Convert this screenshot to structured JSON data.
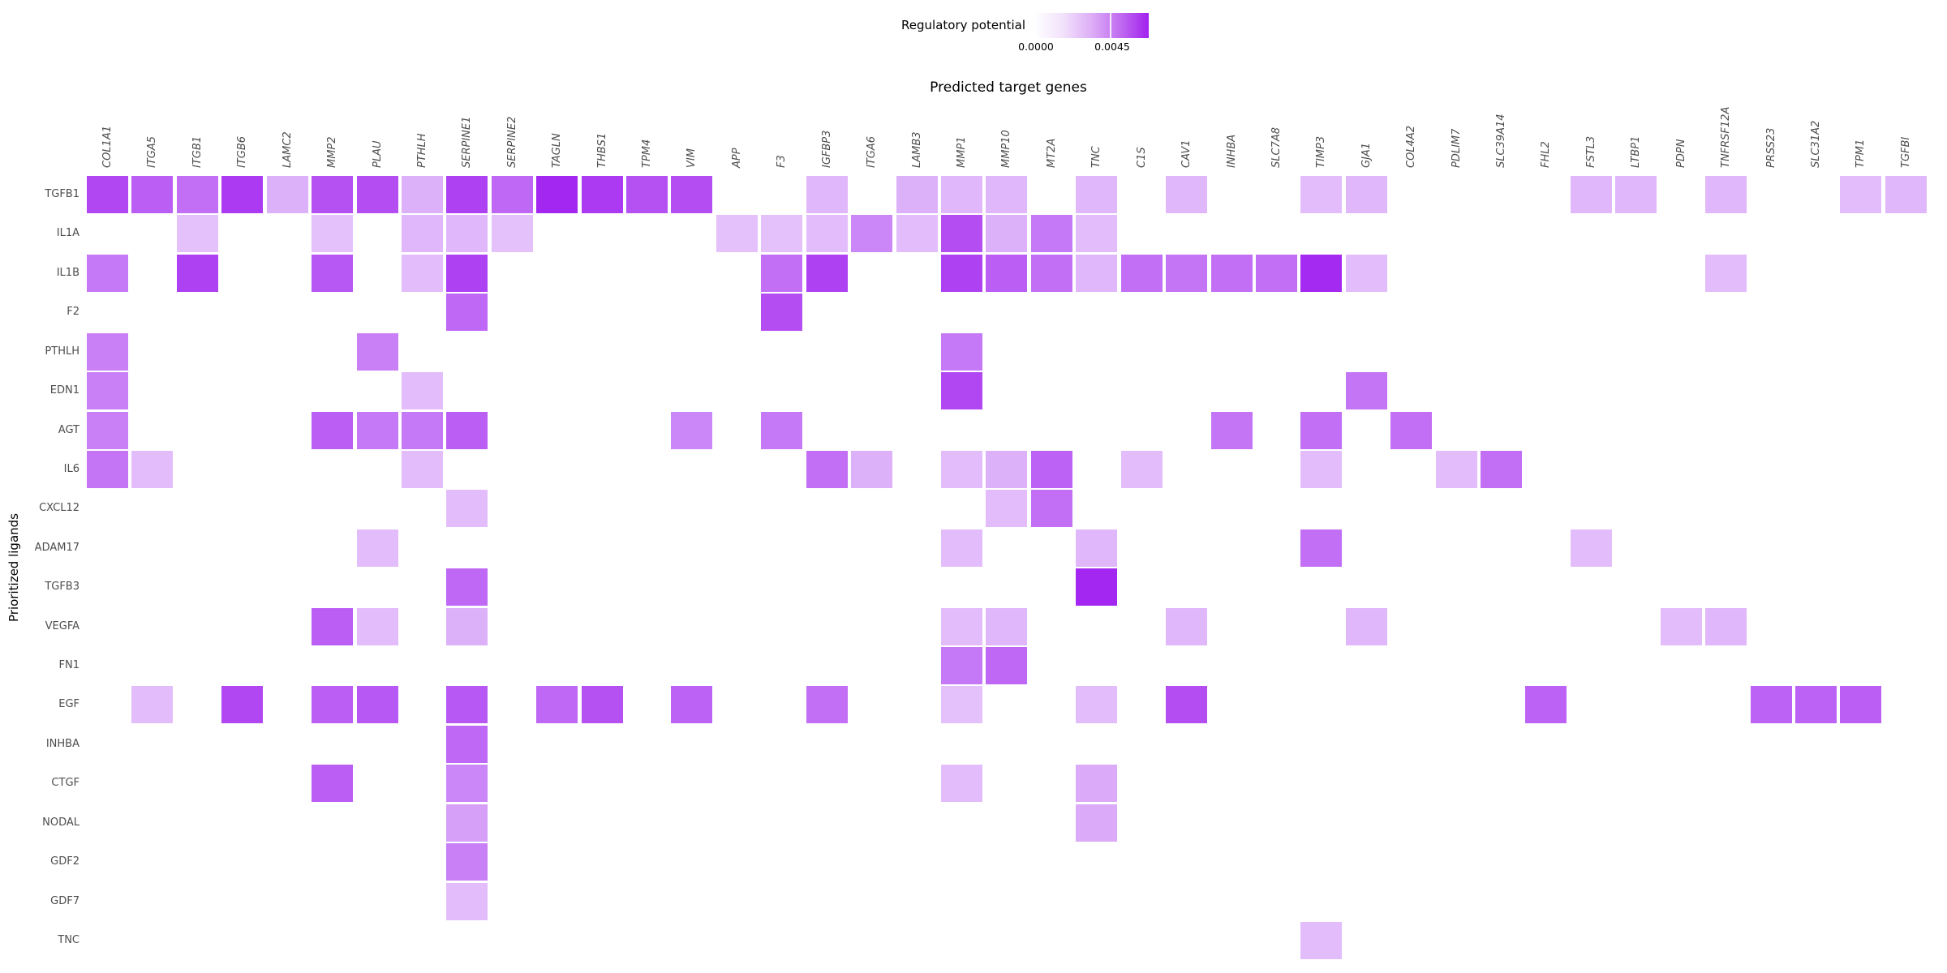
{
  "title": "Predicted target genes",
  "y_axis_label": "Prioritized ligands",
  "legend": {
    "title": "Regulatory potential",
    "tick_low": "0.0000",
    "tick_high": "0.0045",
    "low_color": "#FFFFFF",
    "high_color": "#A020F0"
  },
  "chart_data": {
    "type": "heatmap",
    "x_categories": [
      "COL1A1",
      "ITGA5",
      "ITGB1",
      "ITGB6",
      "LAMC2",
      "MMP2",
      "PLAU",
      "PTHLH",
      "SERPINE1",
      "SERPINE2",
      "TAGLN",
      "THBS1",
      "TPM4",
      "VIM",
      "APP",
      "F3",
      "IGFBP3",
      "ITGA6",
      "LAMB3",
      "MMP1",
      "MMP10",
      "MT2A",
      "TNC",
      "C1S",
      "CAV1",
      "INHBA",
      "SLC7A8",
      "TIMP3",
      "GJA1",
      "COL4A2",
      "PDLIM7",
      "SLC39A14",
      "FHL2",
      "FSTL3",
      "LTBP1",
      "PDPN",
      "TNFRSF12A",
      "PRSS23",
      "SLC31A2",
      "TPM1",
      "TGFBI"
    ],
    "y_categories": [
      "TGFB1",
      "IL1A",
      "IL1B",
      "F2",
      "PTHLH",
      "EDN1",
      "AGT",
      "IL6",
      "CXCL12",
      "ADAM17",
      "TGFB3",
      "VEGFA",
      "FN1",
      "EGF",
      "INHBA",
      "CTGF",
      "NODAL",
      "GDF2",
      "GDF7",
      "TNC"
    ],
    "value_label": "regulatory potential",
    "scale_max": 0.0068,
    "legend_range": [
      0.0,
      0.0045
    ],
    "grid": false,
    "legend_position": "top",
    "cells": [
      [
        "TGFB1",
        "COL1A1",
        0.0056
      ],
      [
        "TGFB1",
        "ITGA5",
        0.0049
      ],
      [
        "TGFB1",
        "ITGB1",
        0.0044
      ],
      [
        "TGFB1",
        "ITGB6",
        0.006
      ],
      [
        "TGFB1",
        "LAMC2",
        0.0024
      ],
      [
        "TGFB1",
        "MMP2",
        0.0053
      ],
      [
        "TGFB1",
        "PLAU",
        0.0054
      ],
      [
        "TGFB1",
        "PTHLH",
        0.0024
      ],
      [
        "TGFB1",
        "SERPINE1",
        0.0058
      ],
      [
        "TGFB1",
        "SERPINE2",
        0.0046
      ],
      [
        "TGFB1",
        "TAGLN",
        0.0066
      ],
      [
        "TGFB1",
        "THBS1",
        0.006
      ],
      [
        "TGFB1",
        "TPM4",
        0.0053
      ],
      [
        "TGFB1",
        "VIM",
        0.0054
      ],
      [
        "TGFB1",
        "IGFBP3",
        0.0022
      ],
      [
        "TGFB1",
        "LAMB3",
        0.0024
      ],
      [
        "TGFB1",
        "MMP1",
        0.0022
      ],
      [
        "TGFB1",
        "MMP10",
        0.0022
      ],
      [
        "TGFB1",
        "TNC",
        0.0022
      ],
      [
        "TGFB1",
        "CAV1",
        0.0022
      ],
      [
        "TGFB1",
        "TIMP3",
        0.002
      ],
      [
        "TGFB1",
        "GJA1",
        0.0022
      ],
      [
        "TGFB1",
        "FSTL3",
        0.0022
      ],
      [
        "TGFB1",
        "LTBP1",
        0.0022
      ],
      [
        "TGFB1",
        "TNFRSF12A",
        0.0022
      ],
      [
        "TGFB1",
        "TPM1",
        0.002
      ],
      [
        "TGFB1",
        "TGFBI",
        0.0022
      ],
      [
        "IL1A",
        "ITGB1",
        0.0019
      ],
      [
        "IL1A",
        "MMP2",
        0.0019
      ],
      [
        "IL1A",
        "PTHLH",
        0.0022
      ],
      [
        "IL1A",
        "SERPINE1",
        0.0022
      ],
      [
        "IL1A",
        "SERPINE2",
        0.0019
      ],
      [
        "IL1A",
        "APP",
        0.0019
      ],
      [
        "IL1A",
        "F3",
        0.0019
      ],
      [
        "IL1A",
        "IGFBP3",
        0.002
      ],
      [
        "IL1A",
        "ITGA6",
        0.0037
      ],
      [
        "IL1A",
        "LAMB3",
        0.002
      ],
      [
        "IL1A",
        "MMP1",
        0.0054
      ],
      [
        "IL1A",
        "MMP10",
        0.0024
      ],
      [
        "IL1A",
        "MT2A",
        0.0041
      ],
      [
        "IL1A",
        "TNC",
        0.002
      ],
      [
        "IL1B",
        "COL1A1",
        0.0041
      ],
      [
        "IL1B",
        "ITGB1",
        0.0058
      ],
      [
        "IL1B",
        "MMP2",
        0.0051
      ],
      [
        "IL1B",
        "PTHLH",
        0.002
      ],
      [
        "IL1B",
        "SERPINE1",
        0.0058
      ],
      [
        "IL1B",
        "F3",
        0.0044
      ],
      [
        "IL1B",
        "IGFBP3",
        0.0058
      ],
      [
        "IL1B",
        "MMP1",
        0.0058
      ],
      [
        "IL1B",
        "MMP10",
        0.0049
      ],
      [
        "IL1B",
        "MT2A",
        0.0044
      ],
      [
        "IL1B",
        "TNC",
        0.0022
      ],
      [
        "IL1B",
        "C1S",
        0.0044
      ],
      [
        "IL1B",
        "CAV1",
        0.0042
      ],
      [
        "IL1B",
        "INHBA",
        0.0044
      ],
      [
        "IL1B",
        "SLC7A8",
        0.0044
      ],
      [
        "IL1B",
        "TIMP3",
        0.0065
      ],
      [
        "IL1B",
        "GJA1",
        0.002
      ],
      [
        "IL1B",
        "TNFRSF12A",
        0.002
      ],
      [
        "F2",
        "SERPINE1",
        0.0046
      ],
      [
        "F2",
        "F3",
        0.0054
      ],
      [
        "PTHLH",
        "COL1A1",
        0.0039
      ],
      [
        "PTHLH",
        "PLAU",
        0.0039
      ],
      [
        "PTHLH",
        "MMP1",
        0.0041
      ],
      [
        "EDN1",
        "COL1A1",
        0.0039
      ],
      [
        "EDN1",
        "PTHLH",
        0.002
      ],
      [
        "EDN1",
        "MMP1",
        0.0056
      ],
      [
        "EDN1",
        "GJA1",
        0.0042
      ],
      [
        "AGT",
        "COL1A1",
        0.0039
      ],
      [
        "AGT",
        "MMP2",
        0.0049
      ],
      [
        "AGT",
        "PLAU",
        0.0041
      ],
      [
        "AGT",
        "PTHLH",
        0.0041
      ],
      [
        "AGT",
        "SERPINE1",
        0.0049
      ],
      [
        "AGT",
        "VIM",
        0.0037
      ],
      [
        "AGT",
        "F3",
        0.0041
      ],
      [
        "AGT",
        "INHBA",
        0.0042
      ],
      [
        "AGT",
        "TIMP3",
        0.0044
      ],
      [
        "AGT",
        "COL4A2",
        0.0044
      ],
      [
        "IL6",
        "COL1A1",
        0.0042
      ],
      [
        "IL6",
        "ITGA5",
        0.002
      ],
      [
        "IL6",
        "PTHLH",
        0.002
      ],
      [
        "IL6",
        "IGFBP3",
        0.0044
      ],
      [
        "IL6",
        "ITGA6",
        0.0024
      ],
      [
        "IL6",
        "MMP1",
        0.002
      ],
      [
        "IL6",
        "MMP10",
        0.0024
      ],
      [
        "IL6",
        "MT2A",
        0.0048
      ],
      [
        "IL6",
        "C1S",
        0.002
      ],
      [
        "IL6",
        "TIMP3",
        0.002
      ],
      [
        "IL6",
        "PDLIM7",
        0.002
      ],
      [
        "IL6",
        "SLC39A14",
        0.0044
      ],
      [
        "CXCL12",
        "SERPINE1",
        0.002
      ],
      [
        "CXCL12",
        "MMP10",
        0.002
      ],
      [
        "CXCL12",
        "MT2A",
        0.0044
      ],
      [
        "ADAM17",
        "PLAU",
        0.002
      ],
      [
        "ADAM17",
        "MMP1",
        0.002
      ],
      [
        "ADAM17",
        "TNC",
        0.0022
      ],
      [
        "ADAM17",
        "TIMP3",
        0.0044
      ],
      [
        "ADAM17",
        "FSTL3",
        0.002
      ],
      [
        "TGFB3",
        "SERPINE1",
        0.0046
      ],
      [
        "TGFB3",
        "TNC",
        0.0066
      ],
      [
        "VEGFA",
        "MMP2",
        0.0049
      ],
      [
        "VEGFA",
        "PLAU",
        0.002
      ],
      [
        "VEGFA",
        "SERPINE1",
        0.0024
      ],
      [
        "VEGFA",
        "MMP1",
        0.002
      ],
      [
        "VEGFA",
        "MMP10",
        0.0022
      ],
      [
        "VEGFA",
        "CAV1",
        0.0022
      ],
      [
        "VEGFA",
        "GJA1",
        0.0022
      ],
      [
        "VEGFA",
        "PDPN",
        0.002
      ],
      [
        "VEGFA",
        "TNFRSF12A",
        0.0022
      ],
      [
        "FN1",
        "MMP1",
        0.0041
      ],
      [
        "FN1",
        "MMP10",
        0.0046
      ],
      [
        "EGF",
        "ITGA5",
        0.002
      ],
      [
        "EGF",
        "ITGB6",
        0.0056
      ],
      [
        "EGF",
        "MMP2",
        0.0049
      ],
      [
        "EGF",
        "PLAU",
        0.0051
      ],
      [
        "EGF",
        "SERPINE1",
        0.0051
      ],
      [
        "EGF",
        "TAGLN",
        0.0046
      ],
      [
        "EGF",
        "THBS1",
        0.0053
      ],
      [
        "EGF",
        "VIM",
        0.0048
      ],
      [
        "EGF",
        "IGFBP3",
        0.0044
      ],
      [
        "EGF",
        "MMP1",
        0.0019
      ],
      [
        "EGF",
        "TNC",
        0.002
      ],
      [
        "EGF",
        "CAV1",
        0.0054
      ],
      [
        "EGF",
        "FHL2",
        0.0048
      ],
      [
        "EGF",
        "PRSS23",
        0.0048
      ],
      [
        "EGF",
        "SLC31A2",
        0.0048
      ],
      [
        "EGF",
        "TPM1",
        0.0049
      ],
      [
        "INHBA",
        "SERPINE1",
        0.0046
      ],
      [
        "CTGF",
        "MMP2",
        0.0049
      ],
      [
        "CTGF",
        "SERPINE1",
        0.0037
      ],
      [
        "CTGF",
        "MMP1",
        0.002
      ],
      [
        "CTGF",
        "TNC",
        0.0026
      ],
      [
        "NODAL",
        "SERPINE1",
        0.0029
      ],
      [
        "NODAL",
        "TNC",
        0.0026
      ],
      [
        "GDF2",
        "SERPINE1",
        0.0039
      ],
      [
        "GDF7",
        "SERPINE1",
        0.002
      ],
      [
        "TNC",
        "TIMP3",
        0.002
      ]
    ]
  }
}
